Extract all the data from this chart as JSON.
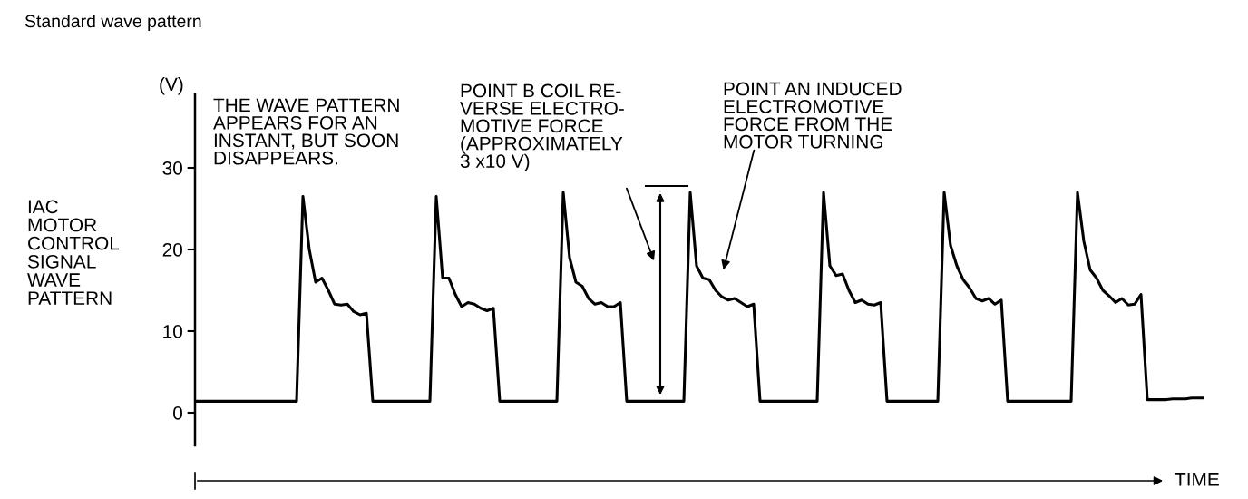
{
  "chart_data": {
    "type": "line",
    "title": "Standard wave pattern",
    "ylabel": "IAC\nMOTOR\nCONTROL\nSIGNAL\nWAVE\nPATTERN",
    "xlabel": "TIME",
    "categories": [
      null,
      null,
      null,
      null,
      null,
      null,
      null,
      null,
      null,
      null,
      null,
      null,
      null,
      null,
      null,
      null,
      null,
      null,
      null,
      null,
      null,
      null,
      null,
      null,
      null,
      null,
      null,
      null,
      null,
      null,
      null,
      null,
      null,
      null,
      null,
      null,
      null,
      null,
      null,
      null,
      null,
      null,
      null,
      null,
      null,
      null,
      null,
      null,
      null,
      null,
      null,
      null,
      null,
      null,
      null,
      null,
      null,
      null,
      null,
      null,
      null,
      null,
      null,
      null,
      null,
      null,
      null,
      null,
      null,
      null,
      null,
      null,
      null,
      null,
      null,
      null,
      null,
      null,
      null,
      null,
      null,
      null,
      null,
      null,
      null,
      null,
      null,
      null,
      null,
      null,
      null,
      null,
      null,
      null,
      null,
      null,
      null,
      null,
      null,
      null,
      null,
      null,
      null,
      null,
      null,
      null,
      null,
      null,
      null,
      null,
      null,
      null,
      null,
      null,
      null,
      null,
      null,
      null,
      null,
      null,
      null,
      null,
      null,
      null,
      null,
      null,
      null,
      null,
      null,
      null,
      null,
      null,
      null,
      null,
      null,
      null,
      null,
      null,
      null,
      null,
      null,
      null,
      null,
      null,
      null,
      null,
      null,
      null,
      null,
      null,
      null,
      null,
      null,
      null,
      null,
      null,
      null,
      null,
      null,
      null
    ],
    "series": [
      {
        "color": "#000000",
        "values": [
          1.4,
          1.4,
          1.4,
          1.4,
          1.4,
          1.4,
          1.4,
          1.4,
          1.4,
          1.4,
          1.4,
          1.4,
          1.4,
          1.4,
          1.4,
          1.4,
          1.4,
          26.5,
          20,
          16,
          16.5,
          15,
          13.3,
          13.2,
          13.3,
          12.4,
          12,
          12.2,
          1.4,
          1.4,
          1.4,
          1.4,
          1.4,
          1.4,
          1.4,
          1.4,
          1.4,
          1.4,
          26.5,
          16.5,
          16.5,
          14.5,
          13,
          13.5,
          13.3,
          12.8,
          12.5,
          12.8,
          1.4,
          1.4,
          1.4,
          1.4,
          1.4,
          1.4,
          1.4,
          1.4,
          1.4,
          1.4,
          27,
          19,
          16,
          15.5,
          14,
          13.3,
          13.5,
          13,
          13,
          13.5,
          1.4,
          1.4,
          1.4,
          1.4,
          1.4,
          1.4,
          1.4,
          1.4,
          1.4,
          1.4,
          27,
          18,
          16.5,
          16.3,
          15,
          14.2,
          13.8,
          14,
          13.5,
          13,
          13.3,
          1.4,
          1.4,
          1.4,
          1.4,
          1.4,
          1.4,
          1.4,
          1.4,
          1.4,
          1.4,
          27,
          18,
          16.8,
          17,
          15,
          13.5,
          13.8,
          13.3,
          13.2,
          13.5,
          1.4,
          1.4,
          1.4,
          1.4,
          1.4,
          1.4,
          1.4,
          1.4,
          1.4,
          27,
          20.5,
          18,
          16.3,
          15.3,
          14,
          13.7,
          14,
          13.3,
          13.8,
          1.4,
          1.4,
          1.4,
          1.4,
          1.4,
          1.4,
          1.4,
          1.4,
          1.4,
          1.4,
          1.4,
          27,
          21,
          17.5,
          16.5,
          15,
          14.3,
          13.5,
          14,
          13.2,
          13.3,
          14.5,
          1.6,
          1.6,
          1.6,
          1.6,
          1.7,
          1.7,
          1.7,
          1.8,
          1.8,
          1.8
        ]
      }
    ],
    "ylim": [
      -4,
      39
    ],
    "yticks": [
      0,
      10,
      20,
      30
    ],
    "tick_labels": "y",
    "grid": false,
    "legend": false,
    "marker": "none",
    "line_style": "solid",
    "annotations": [
      "(V)",
      "THE WAVE PATTERN\nAPPEARS FOR AN\nINSTANT, BUT SOON\nDISAPPEARS.",
      "POINT B COIL RE-\nVERSE ELECTRO-\nMOTIVE FORCE\n(APPROXIMATELY\n3 x10 V)",
      "POINT AN INDUCED\nELECTROMOTIVE\nFORCE FROM THE\nMOTOR TURNING"
    ]
  }
}
